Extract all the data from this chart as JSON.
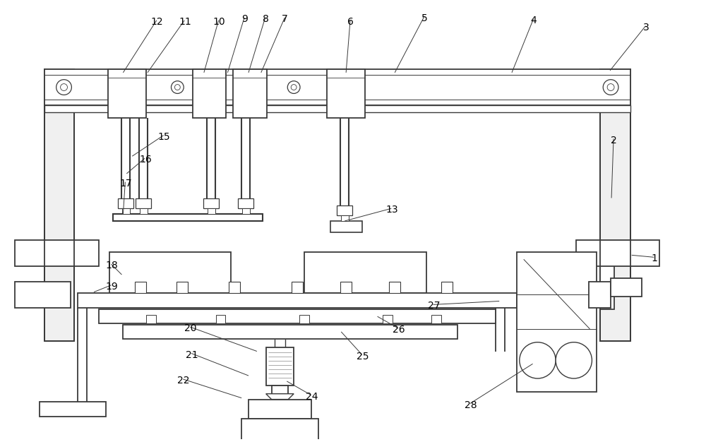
{
  "fig_width": 10.0,
  "fig_height": 6.26,
  "dpi": 100,
  "bg_color": "#ffffff",
  "lc": "#3a3a3a",
  "lc_hatch": "#888888",
  "lw": 1.0,
  "lw2": 1.3,
  "fs": 10
}
